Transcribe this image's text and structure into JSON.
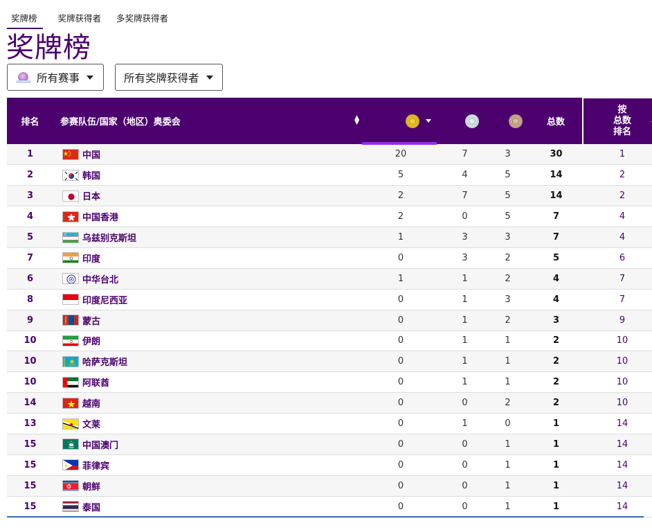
{
  "tabs": [
    {
      "label": "奖牌榜",
      "active": true
    },
    {
      "label": "奖牌获得者",
      "active": false
    },
    {
      "label": "多奖牌获得者",
      "active": false
    }
  ],
  "page_title": "奖牌榜",
  "filters": {
    "events": {
      "label": "所有赛事",
      "icon": "event-logo-icon"
    },
    "medalists": {
      "label": "所有奖牌获得者"
    }
  },
  "table": {
    "headers": {
      "rank": "排名",
      "team": "参赛队伍/国家（地区）奥委会",
      "gold_icon": "gold-medal-icon",
      "silver_icon": "silver-medal-icon",
      "bronze_icon": "bronze-medal-icon",
      "total": "总数",
      "by_total_line1": "按",
      "by_total_line2": "总数",
      "by_total_line3": "排名"
    },
    "header_color": "#4b006e",
    "accent_color": "#9b2bef",
    "rows": [
      {
        "rank": "1",
        "team": "中国",
        "flag": "china-flag-icon",
        "gold": "20",
        "silver": "7",
        "bronze": "3",
        "total": "30",
        "rank_by_total": "1"
      },
      {
        "rank": "2",
        "team": "韩国",
        "flag": "south-korea-flag-icon",
        "gold": "5",
        "silver": "4",
        "bronze": "5",
        "total": "14",
        "rank_by_total": "2"
      },
      {
        "rank": "3",
        "team": "日本",
        "flag": "japan-flag-icon",
        "gold": "2",
        "silver": "7",
        "bronze": "5",
        "total": "14",
        "rank_by_total": "2"
      },
      {
        "rank": "4",
        "team": "中国香港",
        "flag": "hong-kong-flag-icon",
        "gold": "2",
        "silver": "0",
        "bronze": "5",
        "total": "7",
        "rank_by_total": "4"
      },
      {
        "rank": "5",
        "team": "乌兹别克斯坦",
        "flag": "uzbekistan-flag-icon",
        "gold": "1",
        "silver": "3",
        "bronze": "3",
        "total": "7",
        "rank_by_total": "4"
      },
      {
        "rank": "7",
        "team": "印度",
        "flag": "india-flag-icon",
        "gold": "0",
        "silver": "3",
        "bronze": "2",
        "total": "5",
        "rank_by_total": "6"
      },
      {
        "rank": "6",
        "team": "中华台北",
        "flag": "chinese-taipei-flag-icon",
        "gold": "1",
        "silver": "1",
        "bronze": "2",
        "total": "4",
        "rank_by_total": "7"
      },
      {
        "rank": "8",
        "team": "印度尼西亚",
        "flag": "indonesia-flag-icon",
        "gold": "0",
        "silver": "1",
        "bronze": "3",
        "total": "4",
        "rank_by_total": "7"
      },
      {
        "rank": "9",
        "team": "蒙古",
        "flag": "mongolia-flag-icon",
        "gold": "0",
        "silver": "1",
        "bronze": "2",
        "total": "3",
        "rank_by_total": "9"
      },
      {
        "rank": "10",
        "team": "伊朗",
        "flag": "iran-flag-icon",
        "gold": "0",
        "silver": "1",
        "bronze": "1",
        "total": "2",
        "rank_by_total": "10"
      },
      {
        "rank": "10",
        "team": "哈萨克斯坦",
        "flag": "kazakhstan-flag-icon",
        "gold": "0",
        "silver": "1",
        "bronze": "1",
        "total": "2",
        "rank_by_total": "10"
      },
      {
        "rank": "10",
        "team": "阿联酋",
        "flag": "uae-flag-icon",
        "gold": "0",
        "silver": "1",
        "bronze": "1",
        "total": "2",
        "rank_by_total": "10"
      },
      {
        "rank": "14",
        "team": "越南",
        "flag": "vietnam-flag-icon",
        "gold": "0",
        "silver": "0",
        "bronze": "2",
        "total": "2",
        "rank_by_total": "10"
      },
      {
        "rank": "13",
        "team": "文莱",
        "flag": "brunei-flag-icon",
        "gold": "0",
        "silver": "1",
        "bronze": "0",
        "total": "1",
        "rank_by_total": "14"
      },
      {
        "rank": "15",
        "team": "中国澳门",
        "flag": "macao-flag-icon",
        "gold": "0",
        "silver": "0",
        "bronze": "1",
        "total": "1",
        "rank_by_total": "14"
      },
      {
        "rank": "15",
        "team": "菲律宾",
        "flag": "philippines-flag-icon",
        "gold": "0",
        "silver": "0",
        "bronze": "1",
        "total": "1",
        "rank_by_total": "14"
      },
      {
        "rank": "15",
        "team": "朝鲜",
        "flag": "north-korea-flag-icon",
        "gold": "0",
        "silver": "0",
        "bronze": "1",
        "total": "1",
        "rank_by_total": "14"
      },
      {
        "rank": "15",
        "team": "泰国",
        "flag": "thailand-flag-icon",
        "gold": "0",
        "silver": "0",
        "bronze": "1",
        "total": "1",
        "rank_by_total": "14"
      }
    ]
  }
}
